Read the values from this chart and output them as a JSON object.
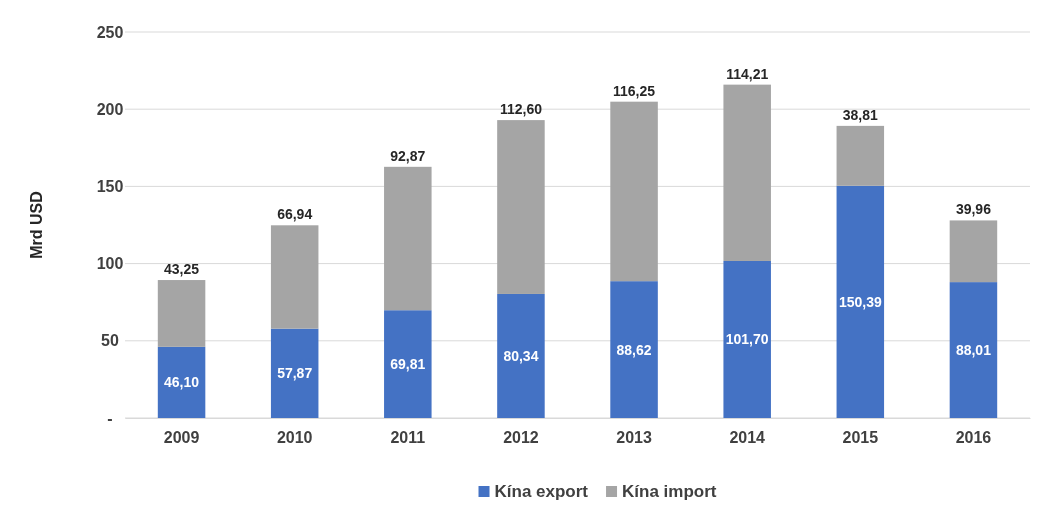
{
  "chart_data": {
    "type": "bar",
    "stacked": true,
    "ylabel": "Mrd USD",
    "categories": [
      "2009",
      "2010",
      "2011",
      "2012",
      "2013",
      "2014",
      "2015",
      "2016"
    ],
    "series": [
      {
        "name": "Kína export",
        "color": "#4472c4",
        "values": [
          46.1,
          57.87,
          69.81,
          80.34,
          88.62,
          101.7,
          150.39,
          88.01
        ],
        "value_labels": [
          "46,10",
          "57,87",
          "69,81",
          "80,34",
          "88,62",
          "101,70",
          "150,39",
          "88,01"
        ]
      },
      {
        "name": "Kína import",
        "color": "#a5a5a5",
        "values": [
          43.25,
          66.94,
          92.87,
          112.6,
          116.25,
          114.21,
          38.81,
          39.96
        ],
        "value_labels": [
          "43,25",
          "66,94",
          "92,87",
          "112,60",
          "116,25",
          "114,21",
          "38,81",
          "39,96"
        ]
      }
    ],
    "ylim": [
      0,
      250
    ],
    "yticks": [
      {
        "value": 0,
        "label": "-"
      },
      50,
      100,
      150,
      200,
      250
    ],
    "grid": "y",
    "legend": "bottom"
  }
}
